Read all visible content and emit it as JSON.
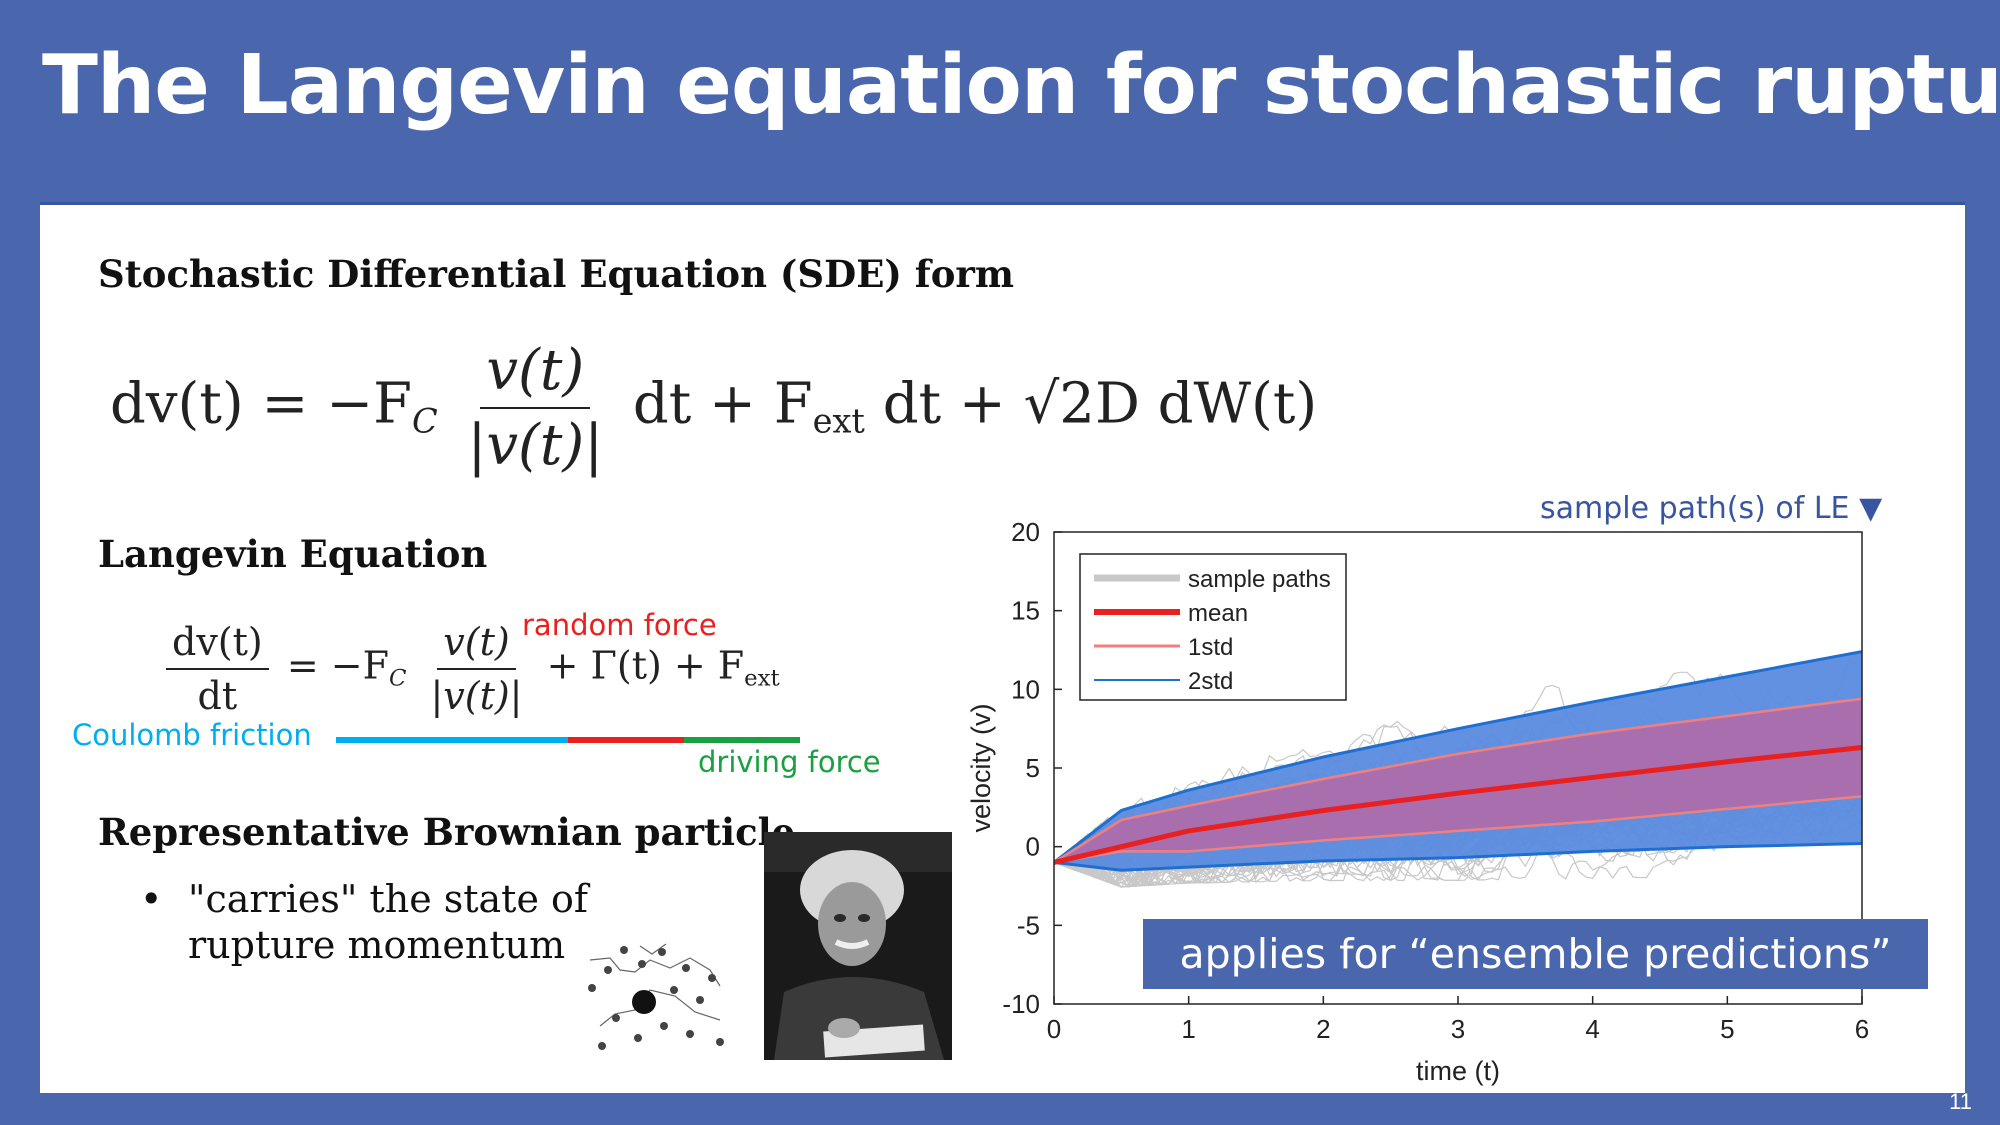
{
  "slide": {
    "title": "The Langevin equation for stochastic rupture",
    "page_number": "11"
  },
  "sde": {
    "heading": "Stochastic Differential Equation (SDE) form",
    "lhs": "dv(t) = −F",
    "sub_c": "C",
    "frac_num": "v(t)",
    "frac_den": "|v(t)|",
    "rhs1": "dt + F",
    "sub_ext": "ext",
    "rhs2": "dt + √2D dW(t)"
  },
  "langevin": {
    "heading": "Langevin Equation",
    "lhs_num": "dv(t)",
    "lhs_den": "dt",
    "mid": "= −F",
    "sub_c": "C",
    "frac_num": "v(t)",
    "frac_den": "|v(t)|",
    "rhs": "+ Γ(t) + F",
    "sub_ext": "ext",
    "annotations": {
      "random_force": "random force",
      "coulomb_friction": "Coulomb friction",
      "driving_force": "driving force"
    },
    "colors": {
      "coulomb": "#00aeef",
      "random": "#e8201f",
      "driving": "#1aa040"
    }
  },
  "brownian": {
    "heading": "Representative Brownian particle",
    "bullet_line1": "\"carries\" the state of",
    "bullet_line2": "rupture momentum"
  },
  "callouts": {
    "sample_paths_label": "sample path(s) of LE",
    "ensemble": "applies for “ensemble predictions”"
  },
  "chart_data": {
    "type": "line",
    "xlabel": "time (t)",
    "ylabel": "velocity (v)",
    "xlim": [
      0,
      6
    ],
    "ylim": [
      -10,
      20
    ],
    "xticks": [
      0,
      1,
      2,
      3,
      4,
      5,
      6
    ],
    "yticks": [
      -10,
      -5,
      0,
      5,
      10,
      15,
      20
    ],
    "legend_position": "top-left",
    "series": [
      {
        "name": "sample paths",
        "color": "#c8c8c8"
      },
      {
        "name": "mean",
        "color": "#e8201f",
        "x": [
          0,
          1,
          2,
          3,
          4,
          5,
          6
        ],
        "y": [
          -1,
          1.0,
          2.3,
          3.4,
          4.4,
          5.4,
          6.3
        ]
      },
      {
        "name": "1std",
        "color": "#f08080",
        "x": [
          0,
          0.5,
          1,
          2,
          3,
          4,
          5,
          6
        ],
        "y_upper": [
          -1,
          1.7,
          2.6,
          4.3,
          5.9,
          7.2,
          8.3,
          9.4
        ],
        "y_lower": [
          -1,
          -0.3,
          -0.3,
          0.4,
          1.0,
          1.6,
          2.4,
          3.2
        ]
      },
      {
        "name": "2std",
        "color": "#1f6fd1",
        "x": [
          0,
          0.5,
          1,
          2,
          3,
          4,
          5,
          6
        ],
        "y_upper": [
          -1,
          2.3,
          3.6,
          5.7,
          7.5,
          9.2,
          10.8,
          12.4
        ],
        "y_lower": [
          -1,
          -1.5,
          -1.3,
          -0.9,
          -0.7,
          -0.3,
          0.0,
          0.2
        ]
      }
    ]
  }
}
